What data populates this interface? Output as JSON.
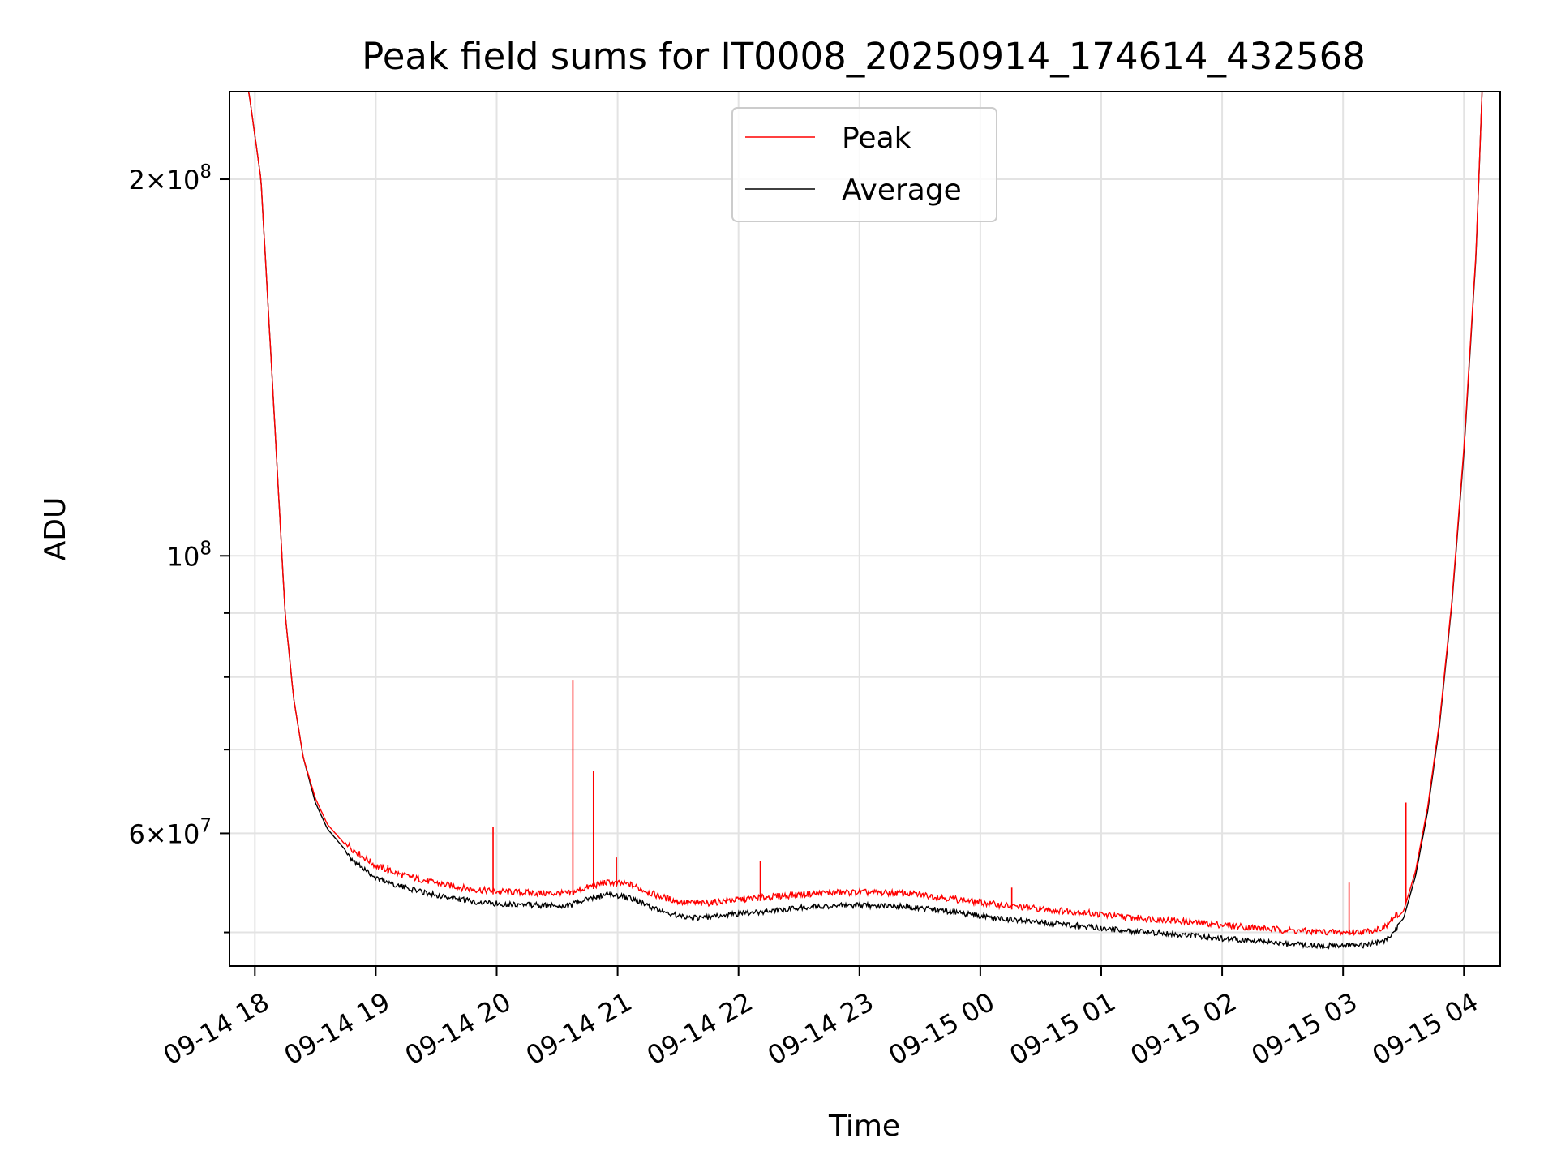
{
  "chart_data": {
    "type": "line",
    "title": "Peak field sums for IT0008_20250914_174614_432568",
    "xlabel": "Time",
    "ylabel": "ADU",
    "yscale": "log",
    "grid": true,
    "legend_position": "top-center",
    "x_unit": "hours since 2025-09-14 00:00",
    "xlim": [
      17.79,
      28.3
    ],
    "ylim": [
      47000000,
      235000000
    ],
    "x_ticks": [
      {
        "value": 18,
        "label": "09-14 18"
      },
      {
        "value": 19,
        "label": "09-14 19"
      },
      {
        "value": 20,
        "label": "09-14 20"
      },
      {
        "value": 21,
        "label": "09-14 21"
      },
      {
        "value": 22,
        "label": "09-14 22"
      },
      {
        "value": 23,
        "label": "09-14 23"
      },
      {
        "value": 24,
        "label": "09-15 00"
      },
      {
        "value": 25,
        "label": "09-15 01"
      },
      {
        "value": 26,
        "label": "09-15 02"
      },
      {
        "value": 27,
        "label": "09-15 03"
      },
      {
        "value": 28,
        "label": "09-15 04"
      }
    ],
    "y_major_ticks": [
      {
        "value": 200000000,
        "mantissa": "2",
        "base": "10",
        "exp": "8"
      },
      {
        "value": 100000000,
        "mantissa": "",
        "base": "10",
        "exp": "8"
      },
      {
        "value": 60000000,
        "mantissa": "6",
        "base": "10",
        "exp": "7"
      }
    ],
    "y_minor_ticks": [
      50000000,
      70000000,
      80000000,
      90000000
    ],
    "series": [
      {
        "name": "Peak",
        "color": "#ff0000",
        "x": [
          17.79,
          17.95,
          18.05,
          18.15,
          18.25,
          18.32,
          18.4,
          18.5,
          18.6,
          18.8,
          19.0,
          19.2,
          19.4,
          19.6,
          19.8,
          20.0,
          20.2,
          20.4,
          20.6,
          20.75,
          20.9,
          21.1,
          21.3,
          21.5,
          21.7,
          21.9,
          22.2,
          22.5,
          22.8,
          23.1,
          23.4,
          23.7,
          24.0,
          24.3,
          24.6,
          24.9,
          25.2,
          25.5,
          25.8,
          26.1,
          26.4,
          26.7,
          27.0,
          27.2,
          27.35,
          27.5,
          27.6,
          27.7,
          27.8,
          27.9,
          28.0,
          28.1,
          28.15,
          28.3
        ],
        "y": [
          235000000,
          235000000,
          200000000,
          135000000,
          90000000,
          77000000,
          69000000,
          64000000,
          61000000,
          58000000,
          56200000,
          55300000,
          54700000,
          54200000,
          53800000,
          53600000,
          53500000,
          53400000,
          53400000,
          54000000,
          54500000,
          54300000,
          53300000,
          52600000,
          52400000,
          52700000,
          53000000,
          53300000,
          53500000,
          53500000,
          53400000,
          53000000,
          52500000,
          52100000,
          51800000,
          51500000,
          51100000,
          50900000,
          50600000,
          50300000,
          50000000,
          49800000,
          49700000,
          49800000,
          50200000,
          52000000,
          56000000,
          63000000,
          74000000,
          92000000,
          122000000,
          175000000,
          235000000,
          235000000
        ],
        "spikes": [
          {
            "x": 19.97,
            "y": 60700000
          },
          {
            "x": 19.1,
            "y": 56600000
          },
          {
            "x": 20.63,
            "y": 79600000
          },
          {
            "x": 20.8,
            "y": 67300000
          },
          {
            "x": 20.99,
            "y": 57400000
          },
          {
            "x": 22.18,
            "y": 57000000
          },
          {
            "x": 24.26,
            "y": 54300000
          },
          {
            "x": 27.05,
            "y": 54800000
          },
          {
            "x": 27.52,
            "y": 63500000
          }
        ]
      },
      {
        "name": "Average",
        "color": "#000000",
        "x": [
          17.79,
          17.95,
          18.05,
          18.15,
          18.25,
          18.32,
          18.4,
          18.5,
          18.6,
          18.8,
          19.0,
          19.2,
          19.4,
          19.6,
          19.8,
          20.0,
          20.2,
          20.4,
          20.6,
          20.75,
          20.9,
          21.1,
          21.3,
          21.5,
          21.7,
          21.9,
          22.2,
          22.5,
          22.8,
          23.1,
          23.4,
          23.7,
          24.0,
          24.3,
          24.6,
          24.9,
          25.2,
          25.5,
          25.8,
          26.1,
          26.4,
          26.7,
          27.0,
          27.2,
          27.35,
          27.5,
          27.6,
          27.7,
          27.8,
          27.9,
          28.0,
          28.1,
          28.15,
          28.3
        ],
        "y": [
          235000000,
          235000000,
          200000000,
          135000000,
          90000000,
          77000000,
          69000000,
          63500000,
          60500000,
          57400000,
          55600000,
          54700000,
          54100000,
          53600000,
          53200000,
          53000000,
          52900000,
          52800000,
          52800000,
          53400000,
          53900000,
          53600000,
          52500000,
          51800000,
          51600000,
          51900000,
          52200000,
          52600000,
          52800000,
          52800000,
          52700000,
          52300000,
          51800000,
          51400000,
          51100000,
          50800000,
          50400000,
          50200000,
          49900000,
          49600000,
          49300000,
          49100000,
          49000000,
          49100000,
          49500000,
          51300000,
          55500000,
          62500000,
          73500000,
          91500000,
          121000000,
          174000000,
          235000000,
          235000000
        ]
      }
    ]
  }
}
